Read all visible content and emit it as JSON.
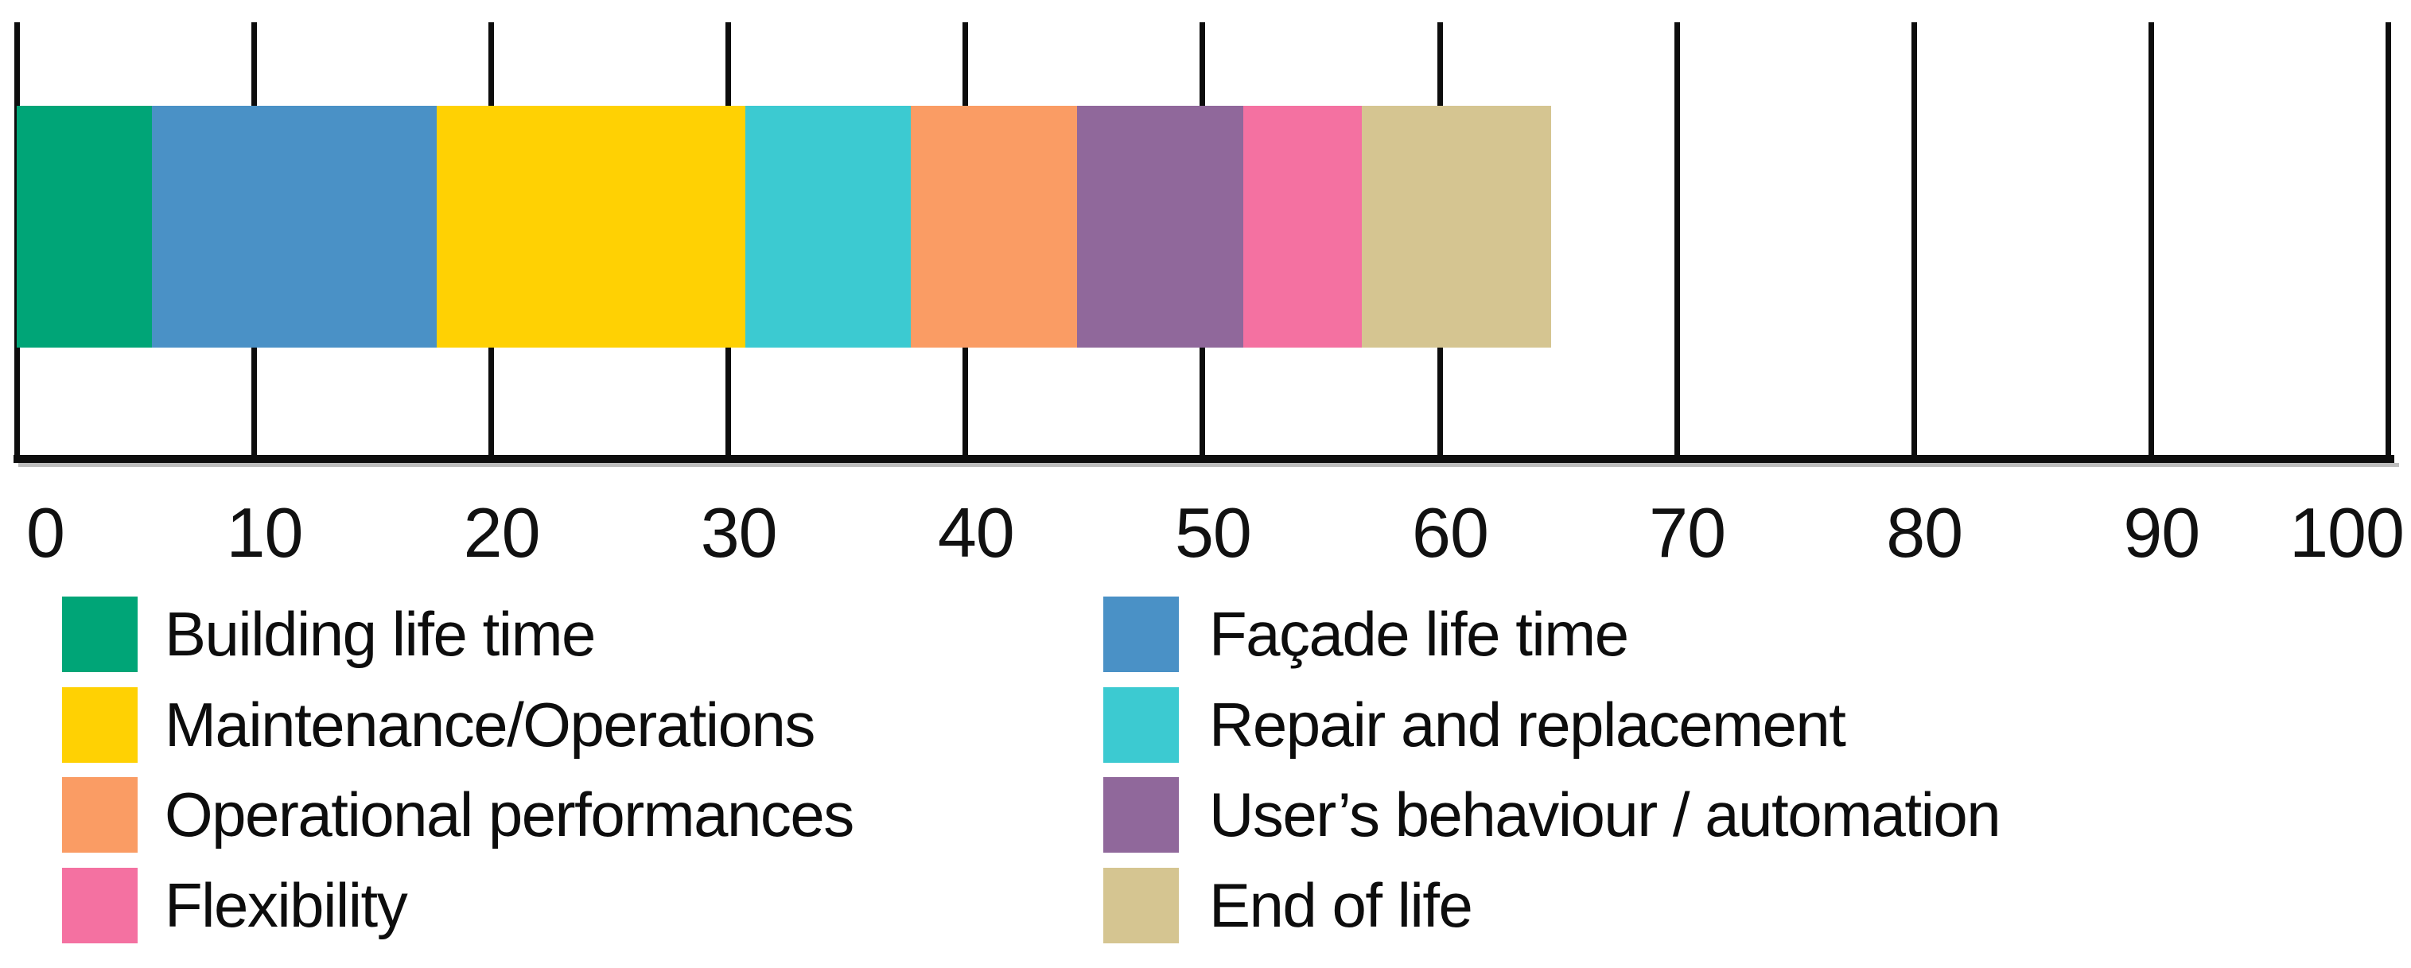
{
  "chart_data": {
    "type": "bar",
    "orientation": "horizontal-stacked",
    "title": "",
    "xlabel": "",
    "ylabel": "",
    "xlim": [
      0,
      100
    ],
    "x_ticks": [
      "0",
      "10",
      "20",
      "30",
      "40",
      "50",
      "60",
      "70",
      "80",
      "90",
      "100"
    ],
    "grid": "vertical-gridlines-at-ticks",
    "bar_total": 64.7,
    "series": [
      {
        "name": "Building life time",
        "value": 5.7,
        "color": "#00A577"
      },
      {
        "name": "Façade life time",
        "value": 12,
        "color": "#4A91C6"
      },
      {
        "name": "Maintenance/Operations",
        "value": 13,
        "color": "#FFD103"
      },
      {
        "name": "Repair and replacement",
        "value": 7,
        "color": "#3CCAD1"
      },
      {
        "name": "Operational performances",
        "value": 7,
        "color": "#FA9C64"
      },
      {
        "name": "User’s behaviour / automation",
        "value": 7,
        "color": "#90689B"
      },
      {
        "name": "Flexibility",
        "value": 5,
        "color": "#F471A1"
      },
      {
        "name": "End of life",
        "value": 8,
        "color": "#D5C591"
      }
    ],
    "legend": {
      "position": "bottom",
      "columns": [
        [
          "Building life time",
          "Maintenance/Operations",
          "Operational performances",
          "Flexibility"
        ],
        [
          "Façade life time",
          "Repair and replacement",
          "User’s behaviour / automation",
          "End of life"
        ]
      ]
    }
  }
}
